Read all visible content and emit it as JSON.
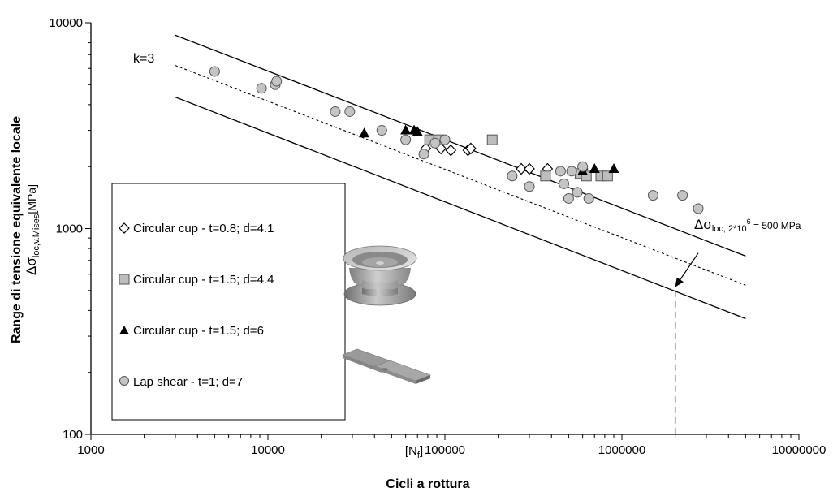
{
  "chart_data": {
    "type": "scatter",
    "x_scale": "log",
    "y_scale": "log",
    "xlim": [
      1000,
      10000000
    ],
    "ylim": [
      100,
      10000
    ],
    "grid": false,
    "legend_position": "left",
    "xlabel": "Cicli a rottura",
    "xlabel_extra": "[N",
    "xlabel_extra_sub": "f",
    "xlabel_extra_close": "]",
    "ylabel": "Range di tensione equivalente locale",
    "ylabel_unit_main": "Δσ",
    "ylabel_unit_sub": "loc,v.Mises",
    "ylabel_unit_tail": "[MPa]",
    "x_ticks": [
      {
        "value": 1000,
        "label": "1000"
      },
      {
        "value": 10000,
        "label": "10000"
      },
      {
        "value": 100000,
        "label": "100000"
      },
      {
        "value": 1000000,
        "label": "1000000"
      },
      {
        "value": 10000000,
        "label": "10000000"
      }
    ],
    "y_ticks": [
      {
        "value": 100,
        "label": "100"
      },
      {
        "value": 1000,
        "label": "1000"
      },
      {
        "value": 10000,
        "label": "10000"
      }
    ],
    "lines": [
      {
        "style": "solid",
        "x": [
          3000,
          5000000
        ],
        "y": [
          8700,
          735
        ]
      },
      {
        "style": "dotted",
        "x": [
          3000,
          5000000
        ],
        "y": [
          6200,
          530
        ]
      },
      {
        "style": "solid",
        "x": [
          3000,
          5000000
        ],
        "y": [
          4350,
          365
        ]
      }
    ],
    "vline": {
      "x": 2000000,
      "y_from": 100,
      "y_to": 500
    },
    "annotations": {
      "slope": "k=3",
      "delta_main": "Δσ",
      "delta_sub": "loc, 2*10",
      "delta_sup": "6",
      "delta_tail": " = 500 MPa",
      "arrow_from": {
        "x": 2700000,
        "y": 760
      },
      "arrow_to": {
        "x": 2000000,
        "y": 520
      }
    },
    "series": [
      {
        "name": "Circular cup - t=0.8; d=4.1",
        "marker": "diamond",
        "points": [
          [
            78000,
            2450
          ],
          [
            85000,
            2700
          ],
          [
            95000,
            2450
          ],
          [
            108000,
            2400
          ],
          [
            135000,
            2400
          ],
          [
            140000,
            2450
          ],
          [
            270000,
            1950
          ],
          [
            300000,
            1950
          ],
          [
            380000,
            1950
          ],
          [
            600000,
            1950
          ]
        ]
      },
      {
        "name": "Circular cup - t=1.5; d=4.4",
        "marker": "square",
        "points": [
          [
            82000,
            2700
          ],
          [
            92000,
            2700
          ],
          [
            185000,
            2700
          ],
          [
            370000,
            1800
          ],
          [
            580000,
            1850
          ],
          [
            630000,
            1800
          ],
          [
            760000,
            1800
          ],
          [
            830000,
            1800
          ]
        ]
      },
      {
        "name": "Circular cup - t=1.5; d=6",
        "marker": "triangle",
        "points": [
          [
            35000,
            2900
          ],
          [
            60000,
            3000
          ],
          [
            67000,
            3000
          ],
          [
            70000,
            2950
          ],
          [
            600000,
            1900
          ],
          [
            700000,
            1950
          ],
          [
            900000,
            1950
          ]
        ]
      },
      {
        "name": "Lap shear - t=1; d=7",
        "marker": "circle",
        "points": [
          [
            5000,
            5800
          ],
          [
            9200,
            4800
          ],
          [
            11000,
            5000
          ],
          [
            11200,
            5200
          ],
          [
            24000,
            3700
          ],
          [
            29000,
            3700
          ],
          [
            44000,
            3000
          ],
          [
            60000,
            2700
          ],
          [
            76000,
            2300
          ],
          [
            88000,
            2600
          ],
          [
            100000,
            2700
          ],
          [
            240000,
            1800
          ],
          [
            300000,
            1600
          ],
          [
            450000,
            1900
          ],
          [
            470000,
            1650
          ],
          [
            500000,
            1400
          ],
          [
            520000,
            1900
          ],
          [
            560000,
            1500
          ],
          [
            600000,
            2000
          ],
          [
            650000,
            1400
          ],
          [
            1500000,
            1450
          ],
          [
            2200000,
            1450
          ],
          [
            2700000,
            1250
          ]
        ]
      }
    ]
  }
}
